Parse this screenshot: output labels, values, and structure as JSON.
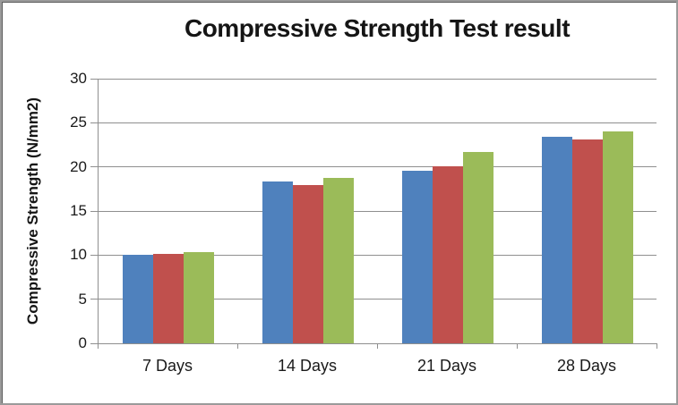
{
  "window": {
    "background": "#ffffff",
    "border_dark": "#5d5d5d",
    "border_light": "#9a9a9a"
  },
  "chart_data": {
    "type": "bar",
    "title": "Compressive Strength Test result",
    "xlabel": "",
    "ylabel": "Compressive Strength  (N/mm2)",
    "categories": [
      "7 Days",
      "14 Days",
      "21 Days",
      "28 Days"
    ],
    "series": [
      {
        "name": "",
        "color": "#4F81BD",
        "values": [
          10.0,
          18.3,
          19.6,
          23.4
        ]
      },
      {
        "name": "",
        "color": "#C0504D",
        "values": [
          10.1,
          17.9,
          20.1,
          23.1
        ]
      },
      {
        "name": "",
        "color": "#9BBB59",
        "values": [
          10.3,
          18.7,
          21.7,
          24.0
        ]
      }
    ],
    "ylim": [
      0,
      30
    ],
    "yticks": [
      0,
      5,
      10,
      15,
      20,
      25,
      30
    ],
    "grid": true,
    "legend": "none",
    "gridline_color": "#8f8f8f",
    "axis_color": "#8f8f8f",
    "text_color": "#1a1a1a"
  }
}
